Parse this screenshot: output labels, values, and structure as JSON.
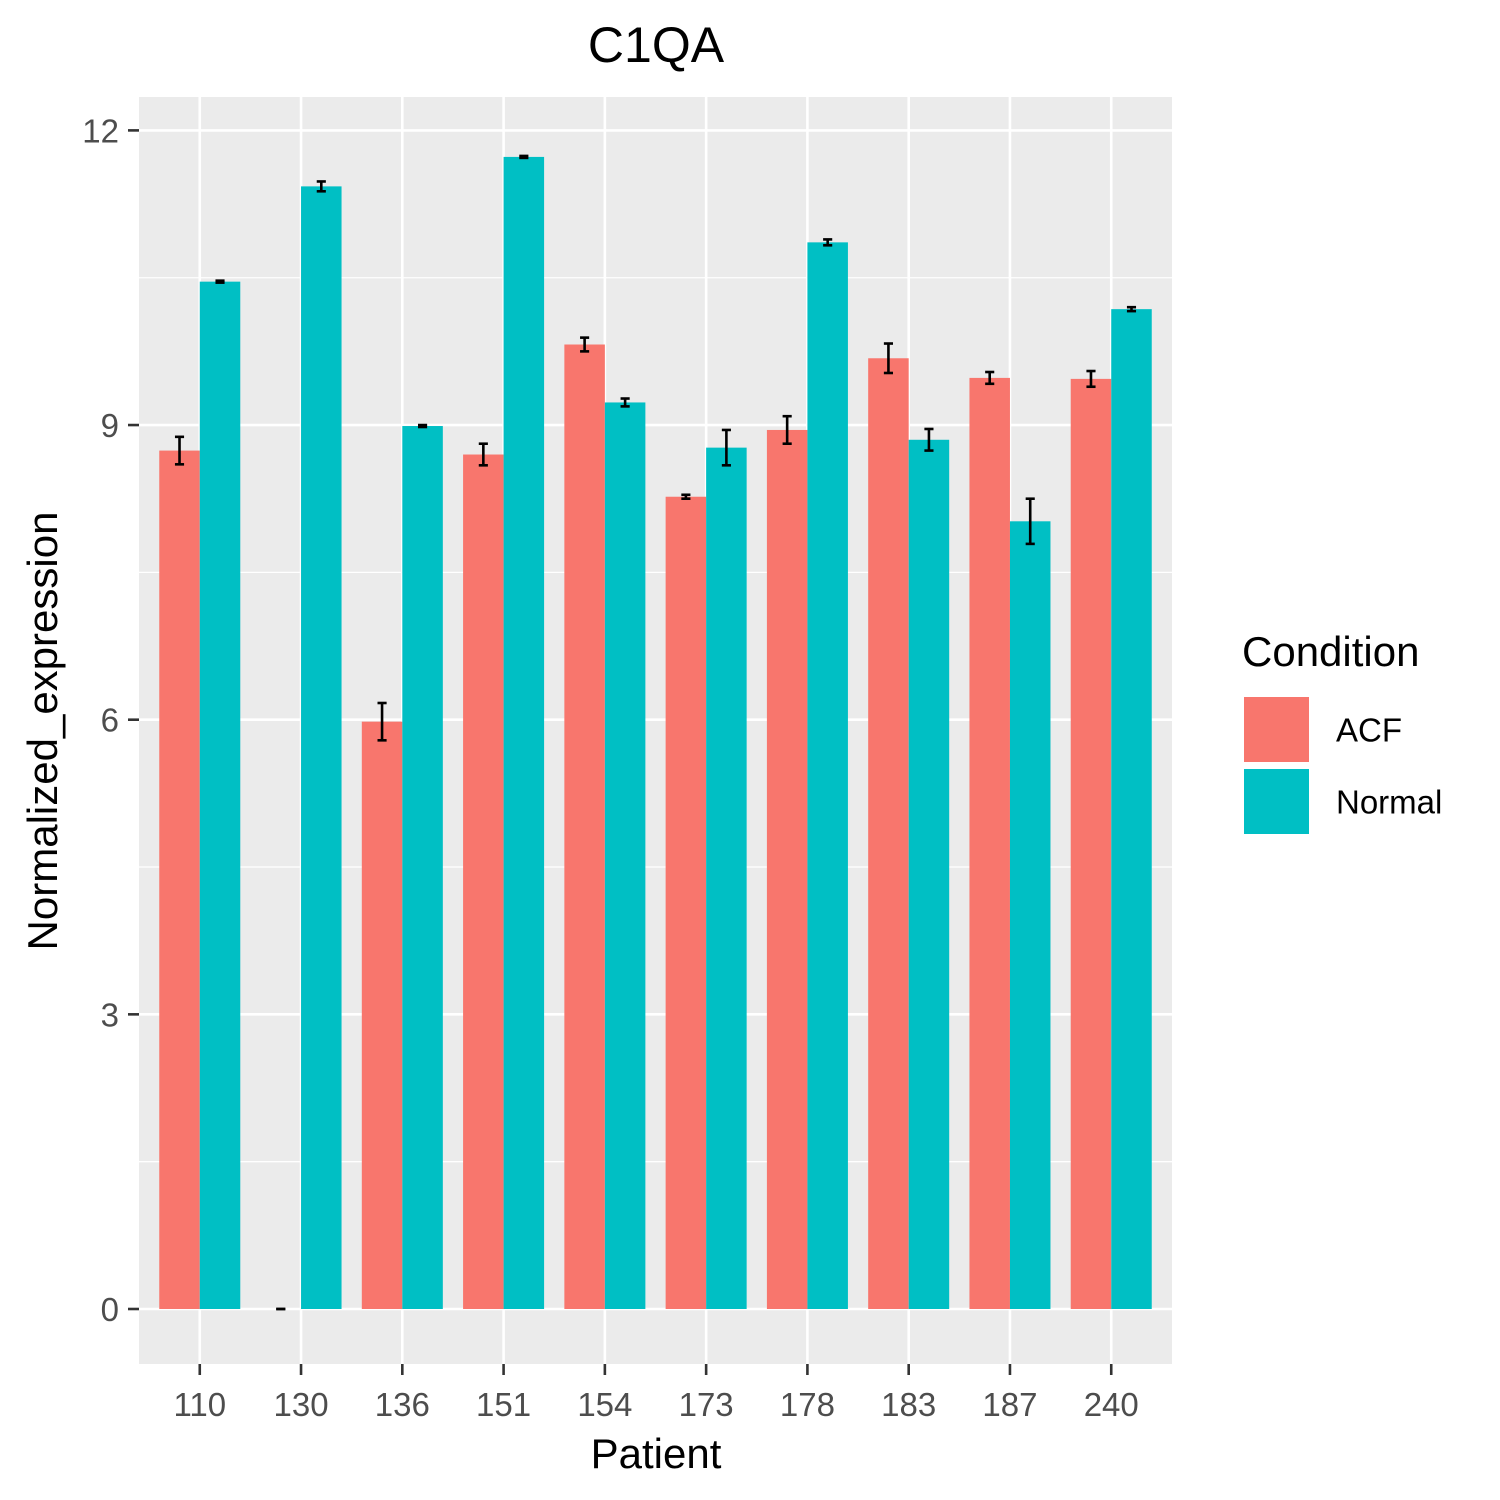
{
  "chart_data": {
    "type": "bar",
    "title": "C1QA",
    "xlabel": "Patient",
    "ylabel": "Normalized_expression",
    "categories": [
      "110",
      "130",
      "136",
      "151",
      "154",
      "173",
      "178",
      "183",
      "187",
      "240"
    ],
    "series": [
      {
        "name": "ACF",
        "color": "#F8766D",
        "values": [
          8.74,
          0.0,
          5.98,
          8.7,
          9.82,
          8.27,
          8.95,
          9.68,
          9.48,
          9.47
        ],
        "error": [
          0.14,
          0.0,
          0.19,
          0.11,
          0.07,
          0.02,
          0.14,
          0.15,
          0.06,
          0.08
        ]
      },
      {
        "name": "Normal",
        "color": "#00BFC4",
        "values": [
          10.46,
          11.43,
          8.99,
          11.73,
          9.23,
          8.77,
          10.86,
          8.85,
          8.02,
          10.18
        ],
        "error": [
          0.01,
          0.05,
          0.01,
          0.01,
          0.04,
          0.18,
          0.03,
          0.11,
          0.23,
          0.02
        ]
      }
    ],
    "ylim": [
      -0.56,
      12.34
    ],
    "yticks": [
      0,
      3,
      6,
      9,
      12
    ],
    "grid": true,
    "legend": {
      "title": "Condition",
      "position": "right",
      "entries": [
        "ACF",
        "Normal"
      ]
    },
    "panel_background": "#EBEBEB",
    "grid_color": "#FFFFFF"
  }
}
